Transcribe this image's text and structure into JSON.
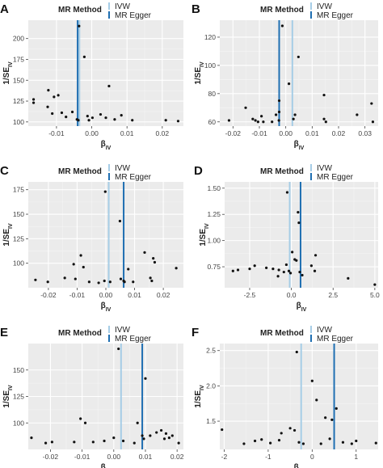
{
  "legend": {
    "title": "MR Method",
    "items": [
      {
        "label": "IVW",
        "color": "#a6cde6"
      },
      {
        "label": "MR Egger",
        "color": "#1f6fb2"
      }
    ]
  },
  "chart_data": [
    {
      "panel": "A",
      "type": "scatter",
      "xlabel": "βIV",
      "ylabel": "1/SEIV",
      "xlim": [
        -0.018,
        0.026
      ],
      "ylim": [
        95,
        222
      ],
      "xticks": [
        -0.01,
        0.0,
        0.01,
        0.02
      ],
      "xtick_labels": [
        "-0.01",
        "0.00",
        "0.01",
        "0.02"
      ],
      "yticks": [
        100,
        125,
        150,
        175,
        200
      ],
      "ytick_labels": [
        "100",
        "125",
        "150",
        "175",
        "200"
      ],
      "ivw": -0.0035,
      "egger": -0.004,
      "points": [
        [
          -0.0165,
          127
        ],
        [
          -0.0165,
          123
        ],
        [
          -0.0123,
          138
        ],
        [
          -0.0107,
          130
        ],
        [
          -0.0112,
          110
        ],
        [
          -0.0125,
          118
        ],
        [
          -0.0095,
          132
        ],
        [
          -0.0085,
          111
        ],
        [
          -0.0073,
          106
        ],
        [
          -0.0055,
          112
        ],
        [
          -0.0042,
          103
        ],
        [
          -0.0038,
          102
        ],
        [
          -0.0036,
          215
        ],
        [
          -0.0021,
          178
        ],
        [
          -0.0012,
          107
        ],
        [
          -0.0008,
          102
        ],
        [
          0.0002,
          105
        ],
        [
          0.0025,
          109
        ],
        [
          0.004,
          105
        ],
        [
          0.0049,
          143
        ],
        [
          0.0065,
          103
        ],
        [
          0.0084,
          108
        ],
        [
          0.0115,
          102
        ],
        [
          0.021,
          102
        ],
        [
          0.0245,
          101
        ]
      ]
    },
    {
      "panel": "B",
      "type": "scatter",
      "xlabel": "βIV",
      "ylabel": "1/SEIV",
      "xlim": [
        -0.025,
        0.035
      ],
      "ylim": [
        57,
        132
      ],
      "xticks": [
        -0.02,
        -0.01,
        0.0,
        0.01,
        0.02,
        0.03
      ],
      "xtick_labels": [
        "-0.02",
        "-0.01",
        "0.00",
        "0.01",
        "0.02",
        "0.03"
      ],
      "yticks": [
        60,
        80,
        100,
        120
      ],
      "ytick_labels": [
        "60",
        "80",
        "100",
        "120"
      ],
      "ivw": 0.0025,
      "egger": -0.0025,
      "points": [
        [
          -0.0215,
          61
        ],
        [
          -0.0152,
          70
        ],
        [
          -0.0125,
          62
        ],
        [
          -0.0115,
          61
        ],
        [
          -0.0105,
          60
        ],
        [
          -0.0092,
          64
        ],
        [
          -0.0085,
          60
        ],
        [
          -0.0052,
          60
        ],
        [
          -0.0037,
          65
        ],
        [
          -0.0026,
          61
        ],
        [
          -0.0025,
          67
        ],
        [
          -0.0025,
          75
        ],
        [
          -0.0013,
          128
        ],
        [
          0.0012,
          87
        ],
        [
          0.0029,
          62
        ],
        [
          0.0035,
          65
        ],
        [
          0.0048,
          106
        ],
        [
          0.0145,
          79
        ],
        [
          0.0145,
          62
        ],
        [
          0.0152,
          60
        ],
        [
          0.027,
          65
        ],
        [
          0.0325,
          73
        ],
        [
          0.033,
          60
        ]
      ]
    },
    {
      "panel": "C",
      "type": "scatter",
      "xlabel": "βIV",
      "ylabel": "1/SEIV",
      "xlim": [
        -0.027,
        0.027
      ],
      "ylim": [
        75,
        183
      ],
      "xticks": [
        -0.02,
        -0.01,
        0.0,
        0.01,
        0.02
      ],
      "xtick_labels": [
        "-0.02",
        "-0.01",
        "0.00",
        "0.01",
        "0.02"
      ],
      "yticks": [
        100,
        125,
        150,
        175
      ],
      "ytick_labels": [
        "100",
        "125",
        "150",
        "175"
      ],
      "ivw": 0.001,
      "egger": 0.0062,
      "points": [
        [
          -0.0245,
          83
        ],
        [
          -0.0202,
          81
        ],
        [
          -0.0143,
          85
        ],
        [
          -0.0112,
          99
        ],
        [
          -0.0106,
          84
        ],
        [
          -0.0087,
          108
        ],
        [
          -0.0078,
          96
        ],
        [
          -0.0058,
          81
        ],
        [
          -0.0025,
          80
        ],
        [
          -0.0005,
          82
        ],
        [
          -0.0002,
          173
        ],
        [
          0.0015,
          81
        ],
        [
          0.0049,
          143
        ],
        [
          0.0052,
          84
        ],
        [
          0.0062,
          82
        ],
        [
          0.0065,
          81
        ],
        [
          0.0078,
          94
        ],
        [
          0.0095,
          81
        ],
        [
          0.0135,
          111
        ],
        [
          0.0155,
          85
        ],
        [
          0.016,
          82
        ],
        [
          0.0165,
          105
        ],
        [
          0.017,
          101
        ],
        [
          0.0245,
          95
        ]
      ]
    },
    {
      "panel": "D",
      "type": "scatter",
      "xlabel": "βIV",
      "ylabel": "1/SEIV",
      "xlim": [
        -4.0,
        5.2
      ],
      "ylim": [
        0.55,
        1.56
      ],
      "xticks": [
        -2.5,
        0.0,
        2.5,
        5.0
      ],
      "xtick_labels": [
        "-2.5",
        "0.0",
        "2.5",
        "5.0"
      ],
      "yticks": [
        0.75,
        1.0,
        1.25,
        1.5
      ],
      "ytick_labels": [
        "0.75",
        "1.00",
        "1.25",
        "1.50"
      ],
      "ivw": -0.1,
      "egger": 0.55,
      "points": [
        [
          -3.5,
          0.71
        ],
        [
          -3.2,
          0.72
        ],
        [
          -2.5,
          0.73
        ],
        [
          -2.2,
          0.76
        ],
        [
          -1.5,
          0.74
        ],
        [
          -1.1,
          0.73
        ],
        [
          -0.8,
          0.66
        ],
        [
          -0.75,
          0.72
        ],
        [
          -0.45,
          0.7
        ],
        [
          -0.3,
          0.77
        ],
        [
          -0.25,
          1.46
        ],
        [
          -0.15,
          0.71
        ],
        [
          -0.05,
          0.69
        ],
        [
          0.05,
          0.89
        ],
        [
          0.2,
          0.82
        ],
        [
          0.3,
          0.81
        ],
        [
          0.4,
          1.27
        ],
        [
          0.45,
          1.17
        ],
        [
          0.5,
          0.7
        ],
        [
          0.65,
          0.67
        ],
        [
          1.2,
          0.76
        ],
        [
          1.4,
          0.71
        ],
        [
          1.45,
          0.86
        ],
        [
          3.4,
          0.64
        ],
        [
          5.0,
          0.58
        ]
      ]
    },
    {
      "panel": "E",
      "type": "scatter",
      "xlabel": "βIV",
      "ylabel": "1/SEIV",
      "xlim": [
        -0.027,
        0.022
      ],
      "ylim": [
        75,
        175
      ],
      "xticks": [
        -0.02,
        -0.01,
        0.0,
        0.01,
        0.02
      ],
      "xtick_labels": [
        "-0.02",
        "-0.01",
        "0.00",
        "0.01",
        "0.02"
      ],
      "yticks": [
        100,
        125,
        150
      ],
      "ytick_labels": [
        "100",
        "125",
        "150"
      ],
      "ivw": 0.0023,
      "egger": 0.009,
      "points": [
        [
          -0.026,
          86
        ],
        [
          -0.0215,
          81
        ],
        [
          -0.0195,
          82
        ],
        [
          -0.0125,
          82
        ],
        [
          -0.0105,
          104
        ],
        [
          -0.009,
          100
        ],
        [
          -0.0065,
          82
        ],
        [
          -0.003,
          83
        ],
        [
          0.0,
          86
        ],
        [
          0.0015,
          170
        ],
        [
          0.003,
          83
        ],
        [
          0.0065,
          81
        ],
        [
          0.0075,
          100
        ],
        [
          0.009,
          88
        ],
        [
          0.0095,
          85
        ],
        [
          0.01,
          142
        ],
        [
          0.0115,
          88
        ],
        [
          0.0135,
          91
        ],
        [
          0.015,
          93
        ],
        [
          0.016,
          85
        ],
        [
          0.0165,
          90
        ],
        [
          0.0175,
          86
        ],
        [
          0.0185,
          88
        ],
        [
          0.0205,
          81
        ]
      ]
    },
    {
      "panel": "F",
      "type": "scatter",
      "xlabel": "βIV",
      "ylabel": "1/SEIV",
      "xlim": [
        -2.1,
        1.5
      ],
      "ylim": [
        1.1,
        2.6
      ],
      "xticks": [
        -2,
        -1,
        0,
        1
      ],
      "xtick_labels": [
        "-2",
        "-1",
        "0",
        "1"
      ],
      "yticks": [
        1.5,
        2.0,
        2.5
      ],
      "ytick_labels": [
        "1.5",
        "2.0",
        "2.5"
      ],
      "ivw": -0.25,
      "egger": 0.5,
      "points": [
        [
          -2.05,
          1.38
        ],
        [
          -1.55,
          1.18
        ],
        [
          -1.3,
          1.22
        ],
        [
          -1.15,
          1.24
        ],
        [
          -0.95,
          1.19
        ],
        [
          -0.75,
          1.23
        ],
        [
          -0.7,
          1.33
        ],
        [
          -0.5,
          1.4
        ],
        [
          -0.4,
          1.37
        ],
        [
          -0.35,
          2.48
        ],
        [
          -0.3,
          1.2
        ],
        [
          -0.2,
          1.18
        ],
        [
          0.0,
          2.07
        ],
        [
          0.1,
          1.8
        ],
        [
          0.2,
          1.18
        ],
        [
          0.3,
          1.55
        ],
        [
          0.4,
          1.25
        ],
        [
          0.45,
          1.52
        ],
        [
          0.55,
          1.68
        ],
        [
          0.7,
          1.2
        ],
        [
          0.9,
          1.18
        ],
        [
          1.0,
          1.22
        ],
        [
          1.45,
          1.19
        ]
      ]
    }
  ]
}
